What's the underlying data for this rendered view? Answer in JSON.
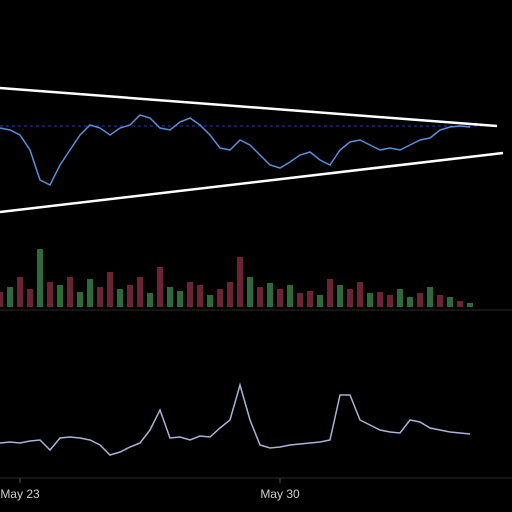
{
  "chart_data": [
    {
      "type": "line",
      "color": "#5b8fd8",
      "ylim": [
        0,
        230
      ],
      "values": [
        112,
        110,
        105,
        90,
        60,
        55,
        75,
        90,
        105,
        115,
        112,
        105,
        112,
        115,
        125,
        122,
        112,
        110,
        118,
        122,
        115,
        105,
        92,
        90,
        100,
        95,
        85,
        75,
        72,
        78,
        85,
        88,
        80,
        75,
        90,
        98,
        100,
        95,
        90,
        92,
        90,
        95,
        100,
        102,
        110,
        113,
        114,
        113
      ]
    },
    {
      "type": "bar",
      "ylim": [
        0,
        65
      ],
      "colors": [
        "#6b2434",
        "#2f6b3a",
        "#6b2434",
        "#6b2434",
        "#2f6b3a",
        "#6b2434",
        "#2f6b3a",
        "#6b2434",
        "#2f6b3a",
        "#2f6b3a",
        "#6b2434",
        "#6b2434",
        "#2f6b3a",
        "#6b2434",
        "#6b2434",
        "#2f6b3a",
        "#6b2434",
        "#2f6b3a",
        "#2f6b3a",
        "#6b2434",
        "#6b2434",
        "#2f6b3a",
        "#6b2434",
        "#6b2434",
        "#6b2434",
        "#2f6b3a",
        "#6b2434",
        "#2f6b3a",
        "#6b2434",
        "#2f6b3a",
        "#6b2434",
        "#6b2434",
        "#2f6b3a",
        "#6b2434",
        "#2f6b3a",
        "#6b2434",
        "#6b2434",
        "#2f6b3a",
        "#6b2434",
        "#6b2434",
        "#2f6b3a",
        "#2f6b3a",
        "#6b2434",
        "#2f6b3a",
        "#6b2434",
        "#2f6b3a",
        "#6b2434",
        "#2f6b3a"
      ],
      "values": [
        15,
        20,
        30,
        18,
        58,
        25,
        22,
        30,
        15,
        28,
        20,
        35,
        18,
        22,
        30,
        14,
        40,
        20,
        16,
        25,
        22,
        12,
        18,
        25,
        50,
        30,
        20,
        24,
        18,
        22,
        14,
        16,
        12,
        28,
        22,
        18,
        25,
        14,
        15,
        12,
        18,
        10,
        14,
        20,
        12,
        10,
        6,
        4
      ]
    },
    {
      "type": "line",
      "color": "#a9b4d6",
      "ylim": [
        0,
        160
      ],
      "categories": [
        null,
        null,
        "May 23",
        null,
        null,
        null,
        null,
        null,
        null,
        null,
        null,
        null,
        null,
        null,
        null,
        null,
        null,
        null,
        null,
        null,
        null,
        null,
        null,
        null,
        null,
        null,
        null,
        null,
        "May 30",
        null,
        null,
        null,
        null,
        null,
        null,
        null,
        null,
        null,
        null,
        null,
        null,
        null,
        null,
        null,
        null,
        null,
        null,
        null
      ],
      "values": [
        32,
        33,
        32,
        34,
        35,
        25,
        37,
        38,
        37,
        35,
        30,
        20,
        23,
        28,
        32,
        45,
        65,
        37,
        38,
        35,
        39,
        38,
        47,
        55,
        90,
        55,
        30,
        27,
        28,
        30,
        31,
        32,
        33,
        35,
        80,
        80,
        55,
        50,
        45,
        43,
        42,
        55,
        53,
        47,
        45,
        43,
        42,
        41
      ]
    }
  ]
}
